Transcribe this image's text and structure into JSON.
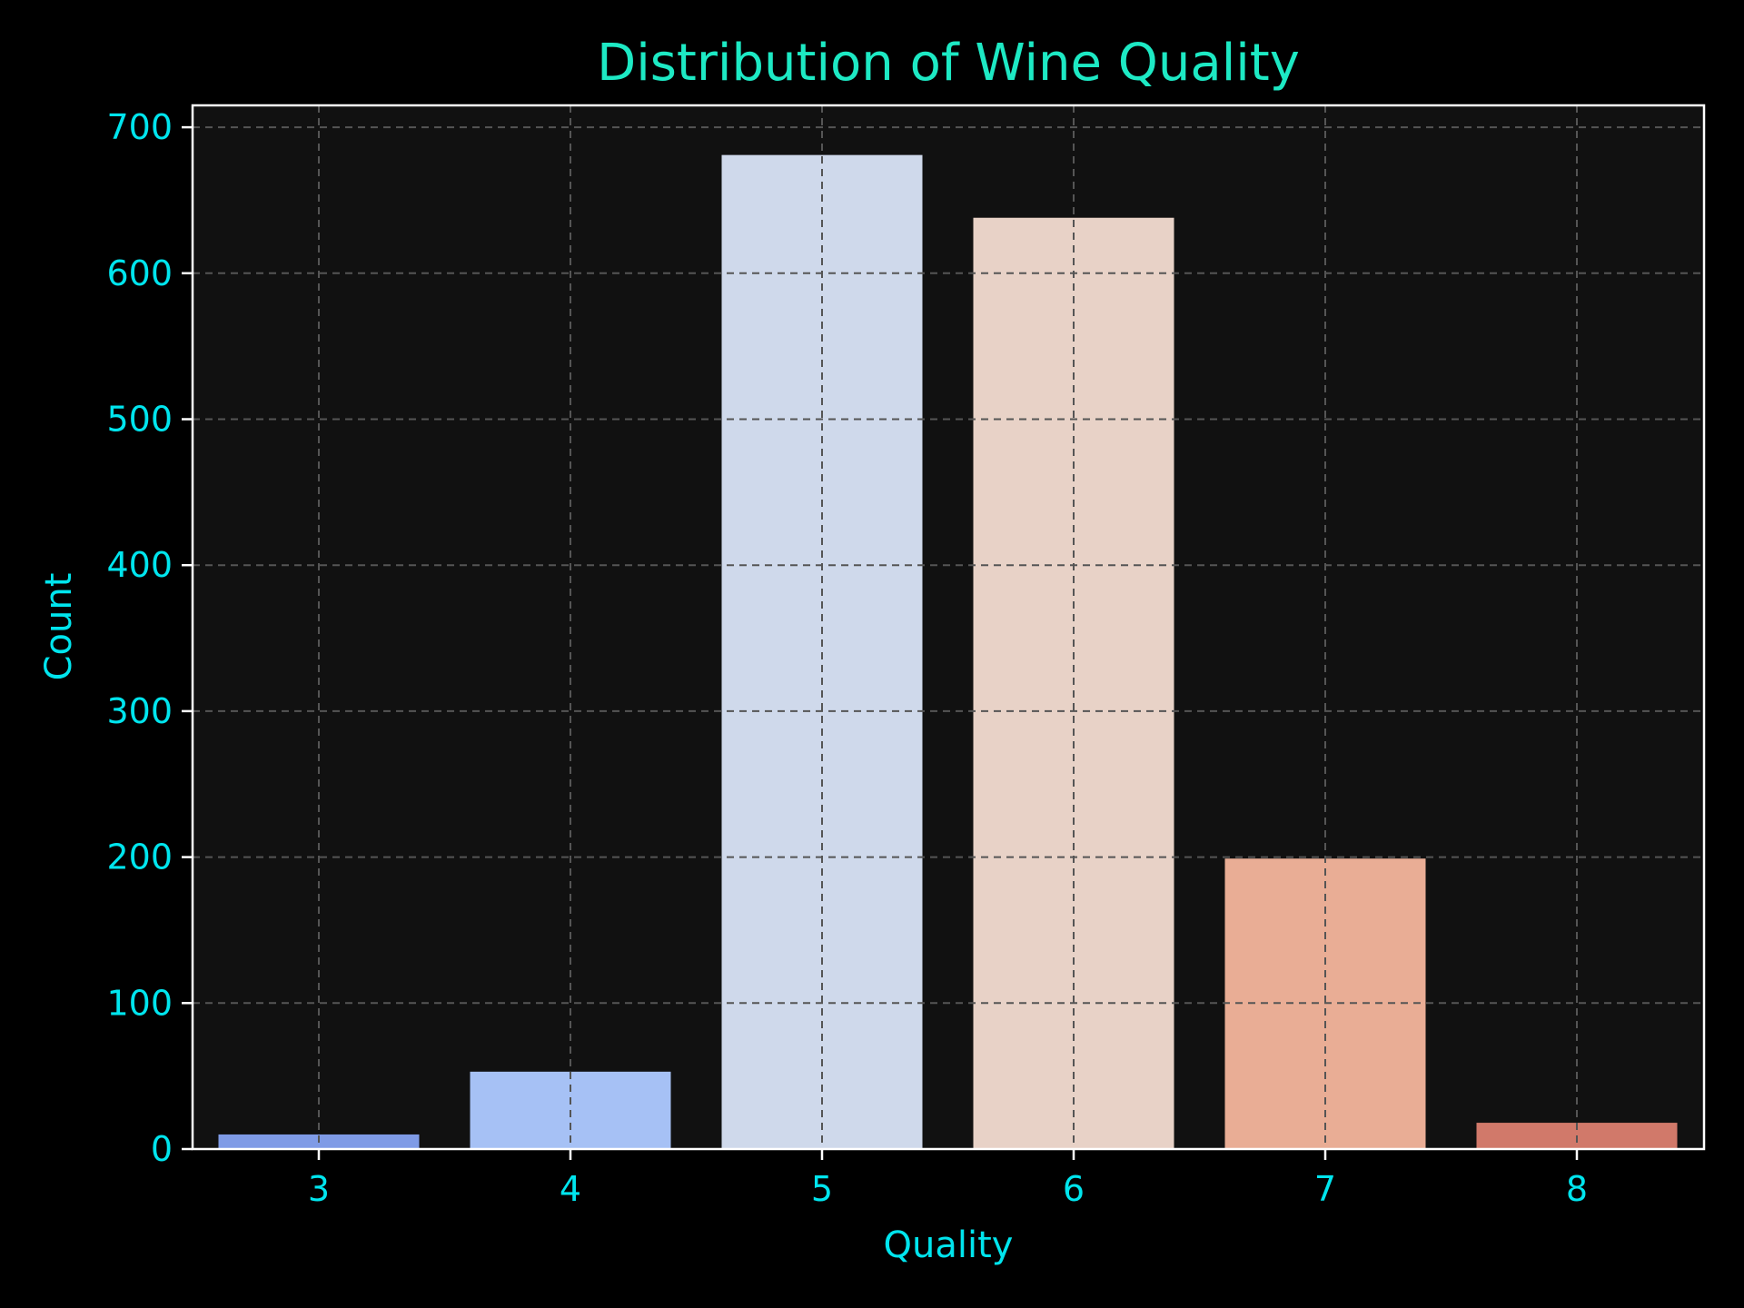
{
  "chart_data": {
    "type": "bar",
    "title": "Distribution of Wine Quality",
    "xlabel": "Quality",
    "ylabel": "Count",
    "categories": [
      "3",
      "4",
      "5",
      "6",
      "7",
      "8"
    ],
    "values": [
      10,
      53,
      681,
      638,
      199,
      18
    ],
    "ylim": [
      0,
      715
    ],
    "yticks": [
      0,
      100,
      200,
      300,
      400,
      500,
      600,
      700
    ],
    "grid": true,
    "colors": {
      "background": "#000000",
      "plot_background": "#111111",
      "text": "#00e5ee",
      "title": "#1de9c4",
      "spine": "#ffffff",
      "grid": "#555555",
      "bars": [
        "#7f9be6",
        "#a6c1f5",
        "#cfd9eb",
        "#e8d2c7",
        "#e9ad95",
        "#d1796a"
      ]
    }
  }
}
